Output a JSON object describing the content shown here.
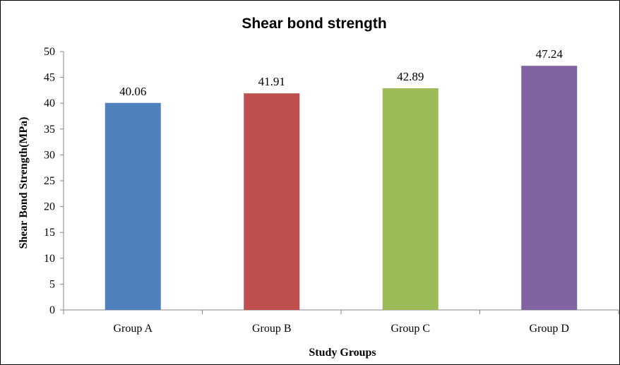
{
  "chart_data": {
    "type": "bar",
    "title": "Shear bond strength",
    "xlabel": "Study Groups",
    "ylabel": "Shear Bond Strength(MPa)",
    "categories": [
      "Group A",
      "Group B",
      "Group C",
      "Group D"
    ],
    "values": [
      40.06,
      41.91,
      42.89,
      47.24
    ],
    "data_labels": [
      "40.06",
      "41.91",
      "42.89",
      "47.24"
    ],
    "colors": [
      "#4f81bd",
      "#c0504d",
      "#9bbb59",
      "#8064a2"
    ],
    "ylim": [
      0,
      50
    ],
    "yticks": [
      0,
      5,
      10,
      15,
      20,
      25,
      30,
      35,
      40,
      45,
      50
    ],
    "grid": false,
    "legend": "none"
  }
}
